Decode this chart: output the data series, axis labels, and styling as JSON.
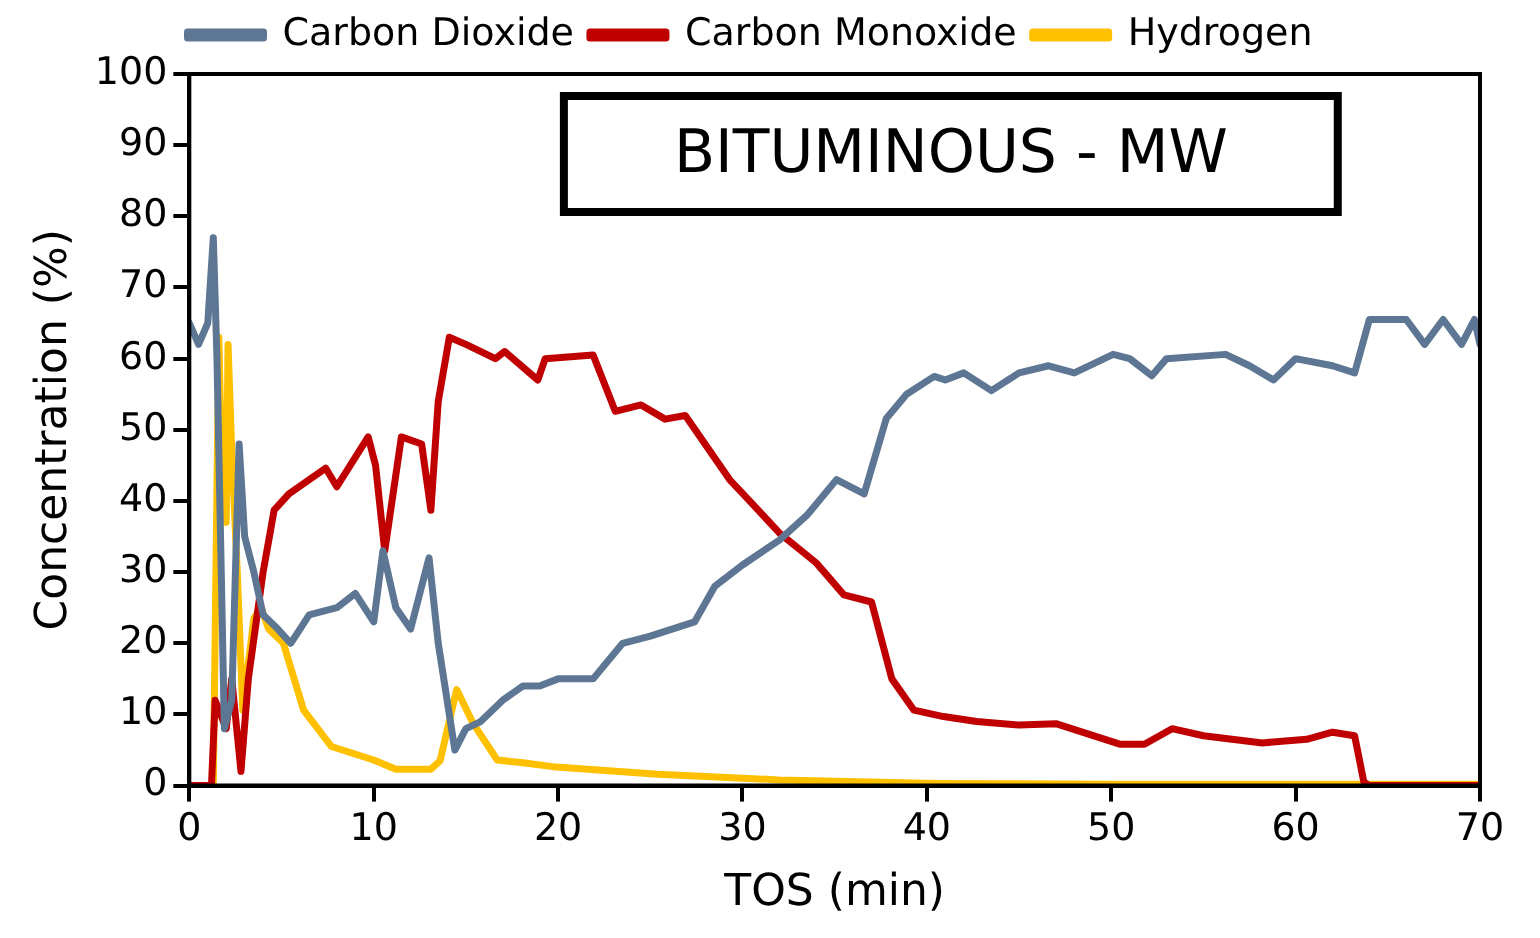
{
  "chart_data": {
    "type": "line",
    "title": "BITUMINOUS - MW",
    "xlabel": "TOS (min)",
    "ylabel": "Concentration (%)",
    "xlim": [
      0,
      70
    ],
    "xticks": [
      0,
      10,
      20,
      30,
      40,
      50,
      60,
      70
    ],
    "ylim": [
      0,
      100
    ],
    "yticks": [
      0,
      10,
      20,
      30,
      40,
      50,
      60,
      70,
      80,
      90,
      100
    ],
    "grid": false,
    "legend": "top",
    "marker": "none",
    "line_style": "solid",
    "series": [
      {
        "name": "Carbon Dioxide",
        "color": "#5d7694",
        "x": [
          0,
          0.5,
          1.0,
          1.3,
          1.5,
          1.9,
          2.3,
          2.7,
          3.0,
          3.5,
          4.0,
          4.8,
          5.5,
          6.5,
          8,
          9,
          10,
          10.5,
          11.2,
          12,
          13,
          13.5,
          14.4,
          15,
          15.8,
          17,
          18.1,
          19,
          20,
          21.9,
          23.5,
          25,
          27.4,
          28.5,
          30,
          32,
          33.5,
          35.1,
          36.6,
          37.8,
          38.9,
          40.4,
          41,
          42,
          43.5,
          45,
          46.6,
          48,
          50.1,
          51,
          52.2,
          53,
          56.2,
          57.5,
          58.8,
          60,
          62,
          63.2,
          64,
          66,
          67,
          68,
          69,
          69.7,
          70
        ],
        "values": [
          65,
          62,
          65,
          77,
          60,
          8,
          12,
          48,
          35,
          30,
          24,
          22,
          20,
          24,
          25,
          27,
          23,
          33,
          25,
          22,
          32,
          20,
          5,
          8,
          9,
          12,
          14,
          14,
          15,
          15,
          20,
          21,
          23,
          28,
          31,
          34.5,
          38,
          43,
          41,
          51.6,
          55,
          57.5,
          57,
          58,
          55.5,
          58,
          59,
          58,
          60.6,
          60,
          57.6,
          60,
          60.6,
          59,
          57,
          60,
          59,
          58,
          65.5,
          65.5,
          62,
          65.5,
          62,
          65.5,
          62
        ]
      },
      {
        "name": "Carbon Monoxide",
        "color": "#c00000",
        "x": [
          0,
          1.2,
          1.4,
          2.0,
          2.3,
          2.8,
          3.2,
          4.0,
          4.6,
          5.4,
          7.4,
          8,
          9.7,
          10.1,
          10.6,
          11.5,
          12.6,
          13.1,
          13.5,
          14.1,
          15,
          16.6,
          17.1,
          18.9,
          19.3,
          21.9,
          23.1,
          24.5,
          25.8,
          26.9,
          29.3,
          30.5,
          32,
          34,
          35.5,
          37,
          38.1,
          39.3,
          40.9,
          42.7,
          45,
          47,
          50.5,
          51.8,
          53.3,
          55,
          58.2,
          60.6,
          62,
          63.2,
          63.7,
          64,
          70
        ],
        "values": [
          0,
          0,
          12,
          8,
          15,
          2,
          15,
          30,
          38.7,
          41,
          44.6,
          42,
          49,
          45,
          33,
          49,
          48,
          38.7,
          54,
          63,
          62,
          60,
          61,
          57,
          60,
          60.5,
          52.6,
          53.5,
          51.5,
          52,
          43,
          39.7,
          35.5,
          31.3,
          26.8,
          25.8,
          15,
          10.6,
          9.7,
          9,
          8.5,
          8.7,
          5.8,
          5.8,
          8,
          7,
          6,
          6.5,
          7.5,
          7,
          0.5,
          0,
          0
        ]
      },
      {
        "name": "Hydrogen",
        "color": "#ffc000",
        "x": [
          0,
          1.3,
          1.6,
          1.8,
          2.0,
          2.1,
          2.3,
          2.6,
          2.9,
          3.5,
          3.9,
          4.3,
          5.1,
          6.2,
          7.7,
          10,
          11.2,
          13.1,
          13.6,
          14.5,
          15.4,
          16.7,
          18.1,
          19.9,
          25.4,
          32,
          40.6,
          50,
          60,
          70
        ],
        "values": [
          0,
          0,
          63,
          40,
          37,
          62,
          47,
          30,
          10.6,
          23.5,
          25,
          22,
          20,
          10.6,
          5.5,
          3.6,
          2.3,
          2.3,
          3.5,
          13.5,
          8.7,
          3.6,
          3.2,
          2.6,
          1.6,
          0.8,
          0.3,
          0.2,
          0.2,
          0.2
        ]
      }
    ]
  }
}
